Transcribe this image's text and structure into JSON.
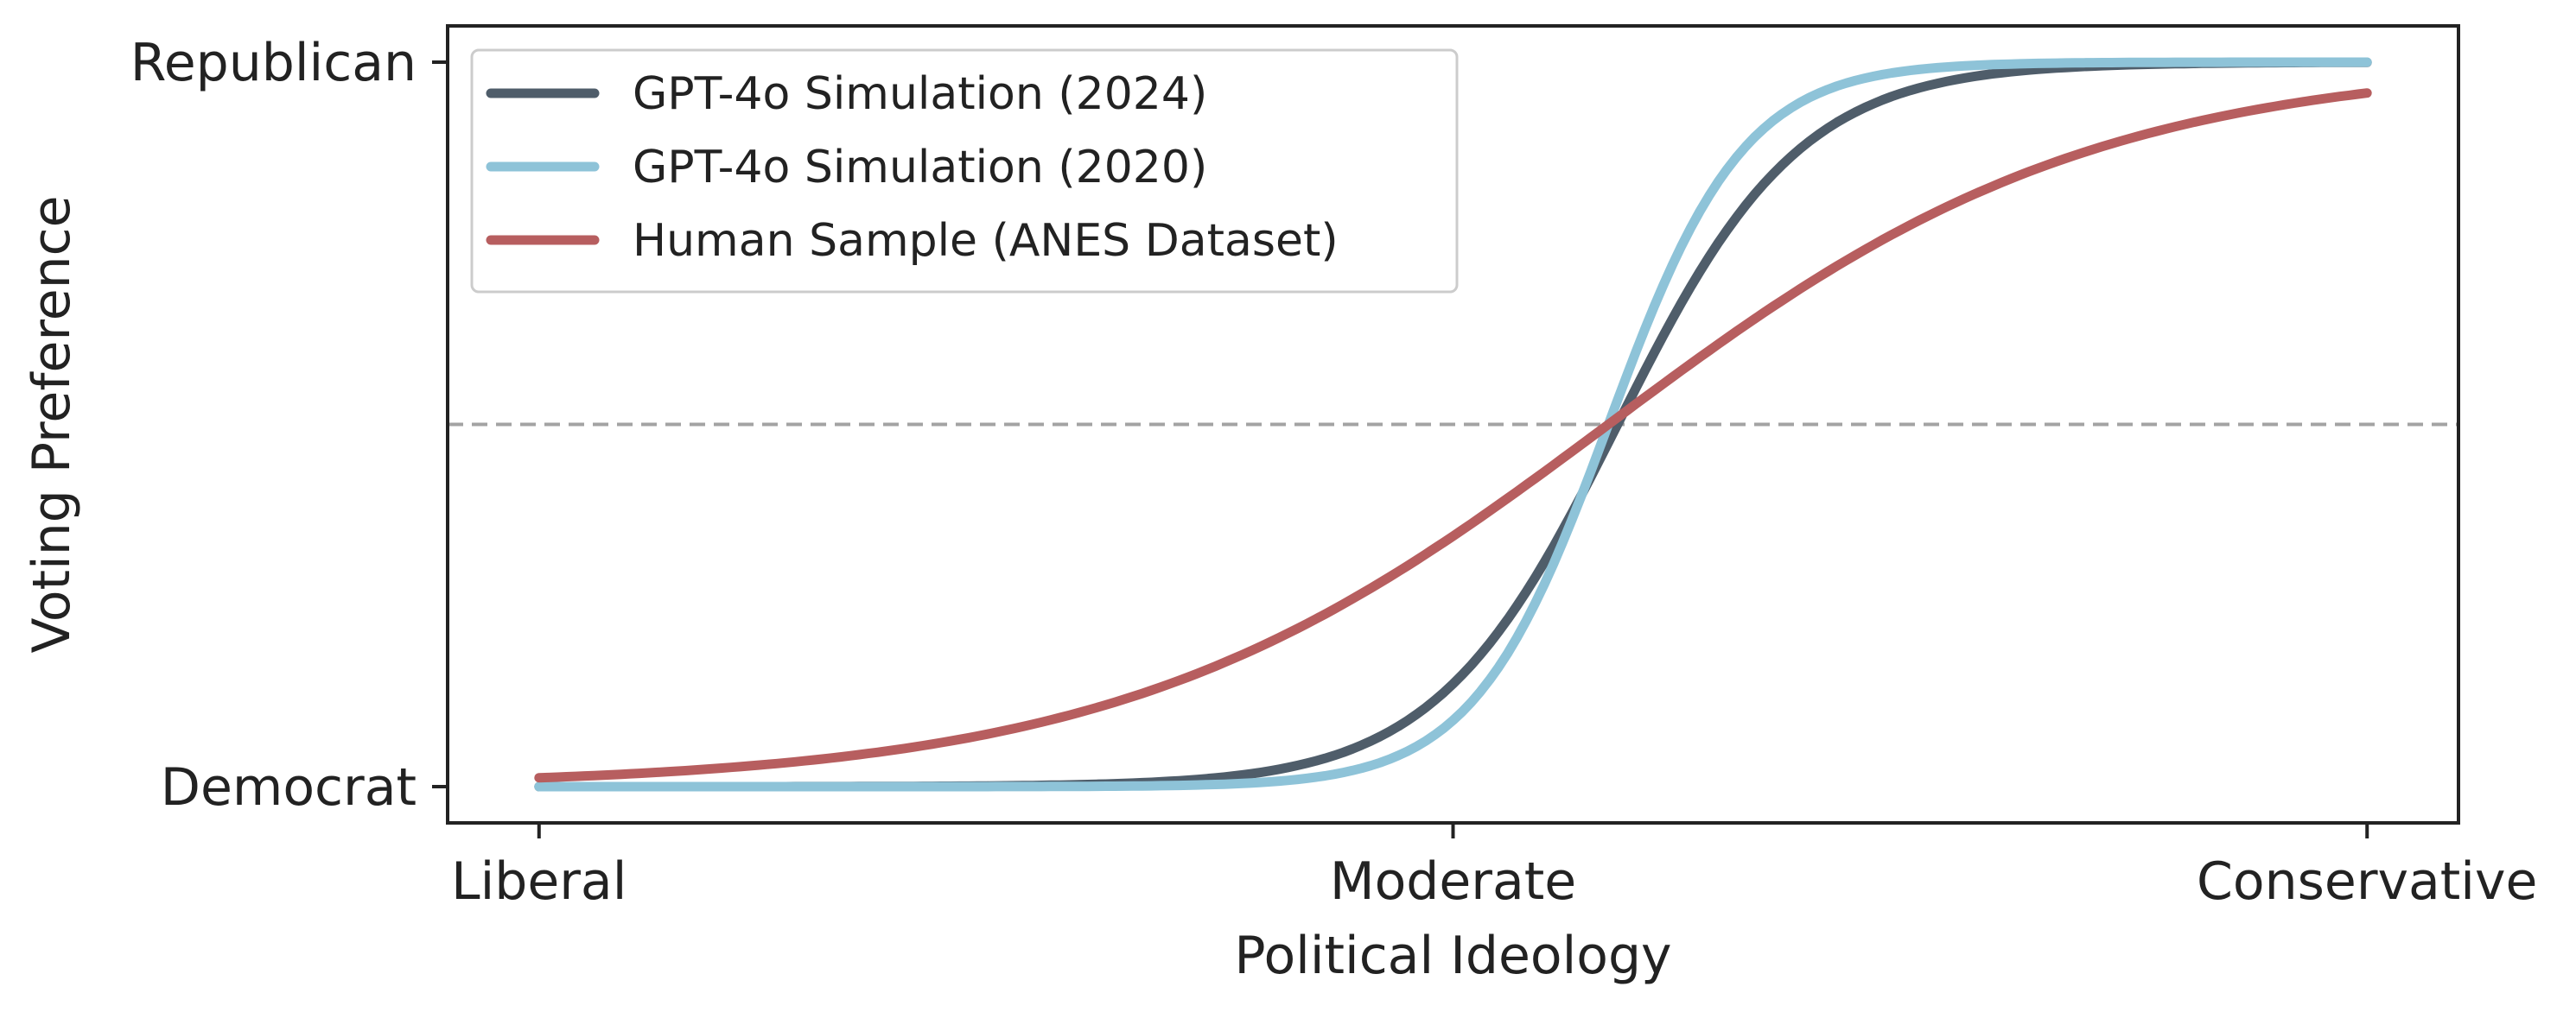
{
  "chart_data": {
    "type": "line",
    "title": "",
    "xlabel": "Political Ideology",
    "ylabel": "Voting Preference",
    "x_ticks": [
      {
        "value": 0.0,
        "label": "Liberal"
      },
      {
        "value": 0.5,
        "label": "Moderate"
      },
      {
        "value": 1.0,
        "label": "Conservative"
      }
    ],
    "y_ticks": [
      {
        "value": 0.0,
        "label": "Democrat"
      },
      {
        "value": 1.0,
        "label": "Republican"
      }
    ],
    "xlim": [
      -0.05,
      1.05
    ],
    "ylim": [
      -0.05,
      1.05
    ],
    "threshold": {
      "value": 0.5,
      "style": "dashed",
      "color": "#a3a3a3"
    },
    "grid": false,
    "legend_position": "upper-left",
    "series": [
      {
        "name": "GPT-4o Simulation (2024)",
        "color": "#4f5d6a",
        "x_start": 0.0,
        "x_end": 1.0,
        "midpoint": 0.59,
        "steepness": 20,
        "shape": "logistic"
      },
      {
        "name": "GPT-4o Simulation (2020)",
        "color": "#8ec3d8",
        "x_start": 0.0,
        "x_end": 1.0,
        "midpoint": 0.585,
        "steepness": 27,
        "shape": "logistic"
      },
      {
        "name": "Human Sample (ANES Dataset)",
        "color": "#b75e5f",
        "x_start": 0.0,
        "x_end": 1.0,
        "midpoint": 0.585,
        "steepness": 7.5,
        "shape": "logistic"
      }
    ]
  }
}
